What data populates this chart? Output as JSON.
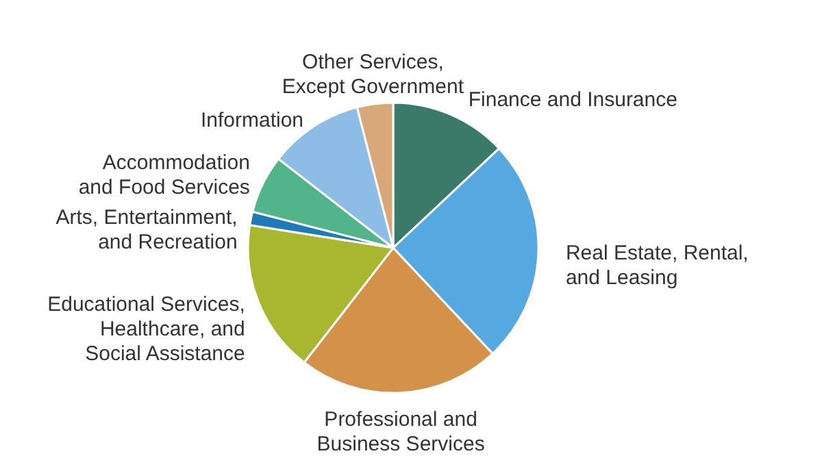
{
  "chart_data": {
    "type": "pie",
    "categories": [
      "Finance and Insurance",
      "Real Estate, Rental,\nand Leasing",
      "Professional and\nBusiness Services",
      "Educational Services,\nHealthcare, and\nSocial Assistance",
      "Arts, Entertainment,\nand Recreation",
      "Accommodation\nand Food Services",
      "Information",
      "Other Services,\nExcept Government"
    ],
    "values": [
      13,
      25,
      22.5,
      17,
      1.5,
      6.5,
      10.5,
      4
    ],
    "colors": [
      "#3b7a68",
      "#56a9e0",
      "#d4914a",
      "#a8b72f",
      "#1f7ab8",
      "#52b48a",
      "#8dbde6",
      "#d8a87a"
    ]
  }
}
